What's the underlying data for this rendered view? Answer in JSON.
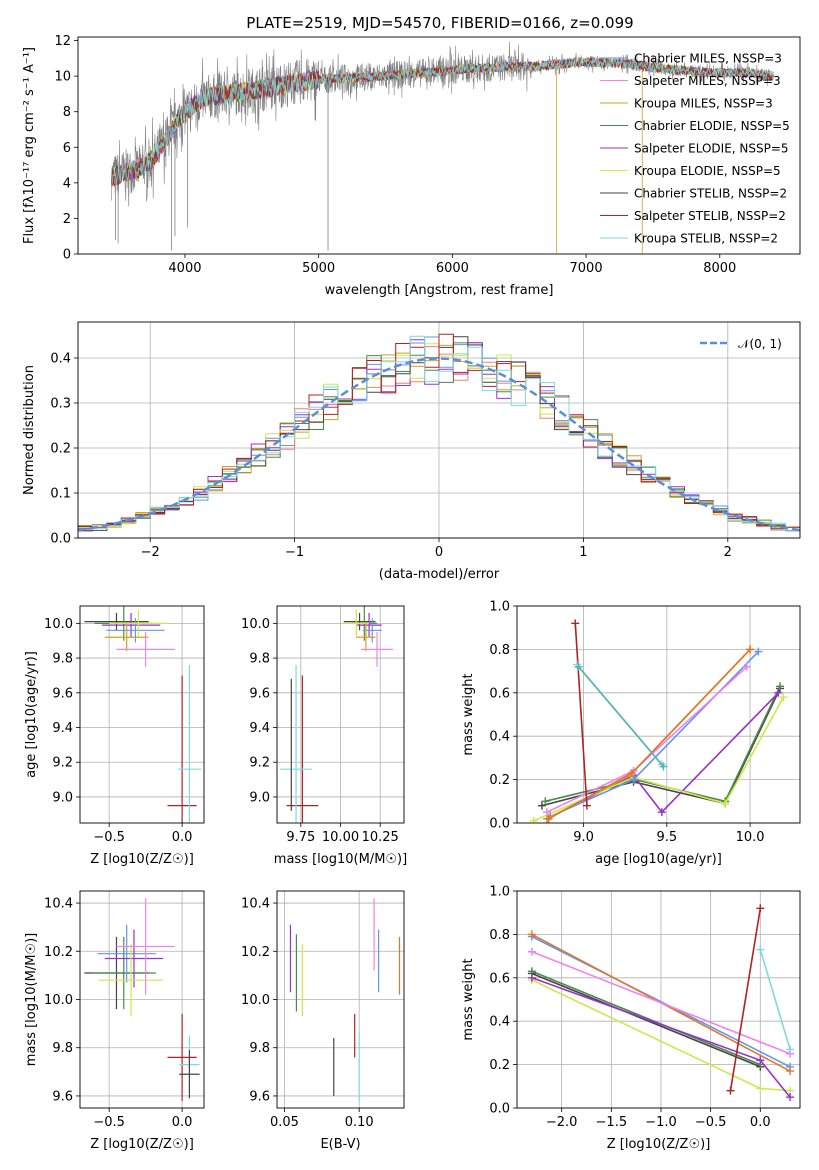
{
  "figure": {
    "title": "PLATE=2519, MJD=54570, FIBERID=0166, z=0.099"
  },
  "chart_data": [
    {
      "id": "spectrum",
      "type": "line",
      "xlabel": "wavelength [Angstrom, rest frame]",
      "ylabel": "Flux [fλ10⁻¹⁷ erg cm⁻² s⁻¹ A⁻¹]",
      "xlim": [
        3200,
        8600
      ],
      "ylim": [
        0,
        12.2
      ],
      "xticks": [
        4000,
        5000,
        6000,
        7000,
        8000
      ],
      "yticks": [
        0,
        2,
        4,
        6,
        8,
        10,
        12
      ],
      "grid": false,
      "legend_position": "top-right",
      "continuum": {
        "x": [
          3450,
          3550,
          3650,
          3750,
          3850,
          3950,
          4050,
          4150,
          4250,
          4400,
          4600,
          4800,
          5000,
          5200,
          5500,
          5800,
          6100,
          6400,
          6700,
          7000,
          7300,
          7600,
          7900,
          8200,
          8400
        ],
        "y": [
          4.3,
          4.6,
          4.8,
          5.3,
          6.3,
          7.6,
          8.3,
          8.8,
          8.9,
          9.1,
          9.3,
          9.6,
          9.8,
          9.9,
          10.0,
          10.2,
          10.4,
          10.5,
          10.6,
          10.8,
          10.7,
          10.4,
          10.2,
          10.2,
          10.0
        ]
      },
      "series": [
        {
          "name": "Chabrier MILES, NSSP=3",
          "color": "#6495ed"
        },
        {
          "name": "Salpeter MILES, NSSP=3",
          "color": "#ee82ee"
        },
        {
          "name": "Kroupa MILES, NSSP=3",
          "color": "#d2a026"
        },
        {
          "name": "Chabrier ELODIE, NSSP=5",
          "color": "#4a8a4a"
        },
        {
          "name": "Salpeter ELODIE, NSSP=5",
          "color": "#9932cc"
        },
        {
          "name": "Kroupa ELODIE, NSSP=5",
          "color": "#d9e84a"
        },
        {
          "name": "Chabrier STELIB, NSSP=2",
          "color": "#444444"
        },
        {
          "name": "Salpeter STELIB, NSSP=2",
          "color": "#b22222"
        },
        {
          "name": "Kroupa STELIB, NSSP=2",
          "color": "#7fd9e0"
        }
      ],
      "data_color": "#808080"
    },
    {
      "id": "residuals",
      "type": "line",
      "xlabel": "(data-model)/error",
      "ylabel": "Normed distribution",
      "xlim": [
        -2.5,
        2.5
      ],
      "ylim": [
        0,
        0.48
      ],
      "xticks": [
        -2,
        -1,
        0,
        1,
        2
      ],
      "yticks": [
        0.0,
        0.1,
        0.2,
        0.3,
        0.4
      ],
      "grid": true,
      "legend_position": "top-right",
      "normal_label": "𝒩(0, 1)",
      "normal_color": "#5a8fd8",
      "series_colors": [
        "#6495ed",
        "#f08080",
        "#d2a026",
        "#4a8a4a",
        "#9932cc",
        "#cce84a",
        "#444444",
        "#b22222",
        "#7fd9e0"
      ]
    },
    {
      "id": "Z-age",
      "type": "scatter",
      "xlabel": "Z [log10(Z/Z☉)]",
      "ylabel": "age  [log10(age/yr)]",
      "xlim": [
        -0.7,
        0.15
      ],
      "ylim": [
        8.85,
        10.1
      ],
      "xticks": [
        -0.5,
        0.0
      ],
      "yticks": [
        9.0,
        9.2,
        9.4,
        9.6,
        9.8,
        10.0
      ],
      "grid": true,
      "points": [
        {
          "x": -0.45,
          "y": 10.01,
          "xerr": 0.22,
          "yerr": 0.05,
          "color": "#444444"
        },
        {
          "x": -0.4,
          "y": 10.0,
          "xerr": 0.2,
          "yerr": 0.1,
          "color": "#4a8a4a"
        },
        {
          "x": -0.35,
          "y": 9.99,
          "xerr": 0.2,
          "yerr": 0.07,
          "color": "#9932cc"
        },
        {
          "x": -0.32,
          "y": 9.96,
          "xerr": 0.2,
          "yerr": 0.07,
          "color": "#6495ed"
        },
        {
          "x": -0.3,
          "y": 10.0,
          "xerr": 0.2,
          "yerr": 0.08,
          "color": "#cce84a"
        },
        {
          "x": -0.38,
          "y": 9.92,
          "xerr": 0.15,
          "yerr": 0.08,
          "color": "#d2a026"
        },
        {
          "x": -0.25,
          "y": 9.85,
          "xerr": 0.2,
          "yerr": 0.1,
          "color": "#ee82ee"
        },
        {
          "x": 0.0,
          "y": 8.95,
          "xerr": 0.1,
          "yerr": 0.75,
          "color": "#b22222"
        },
        {
          "x": 0.05,
          "y": 9.16,
          "xerr": 0.08,
          "yerr": 0.6,
          "color": "#7fd9e0"
        }
      ]
    },
    {
      "id": "mass-age",
      "type": "scatter",
      "xlabel": "mass [log10(M/M☉)]",
      "ylabel": "",
      "xlim": [
        9.6,
        10.4
      ],
      "ylim": [
        8.85,
        10.1
      ],
      "xticks": [
        9.75,
        10.0,
        10.25
      ],
      "tick_labels": [
        "9.75",
        "10.00",
        "10.25"
      ],
      "yticks": [
        9.0,
        9.2,
        9.4,
        9.6,
        9.8,
        10.0
      ],
      "grid": true,
      "points": [
        {
          "x": 10.12,
          "y": 10.01,
          "xerr": 0.1,
          "yerr": 0.05,
          "color": "#444444"
        },
        {
          "x": 10.15,
          "y": 10.0,
          "xerr": 0.08,
          "yerr": 0.1,
          "color": "#4a8a4a"
        },
        {
          "x": 10.18,
          "y": 9.99,
          "xerr": 0.08,
          "yerr": 0.07,
          "color": "#9932cc"
        },
        {
          "x": 10.2,
          "y": 9.96,
          "xerr": 0.06,
          "yerr": 0.07,
          "color": "#6495ed"
        },
        {
          "x": 10.1,
          "y": 10.0,
          "xerr": 0.08,
          "yerr": 0.08,
          "color": "#cce84a"
        },
        {
          "x": 10.16,
          "y": 9.92,
          "xerr": 0.06,
          "yerr": 0.08,
          "color": "#d2a026"
        },
        {
          "x": 10.23,
          "y": 9.85,
          "xerr": 0.1,
          "yerr": 0.1,
          "color": "#ee82ee"
        },
        {
          "x": 9.76,
          "y": 8.95,
          "xerr": 0.1,
          "yerr": 0.75,
          "color": "#b22222"
        },
        {
          "x": 9.72,
          "y": 9.16,
          "xerr": 0.1,
          "yerr": 0.6,
          "color": "#7fd9e0"
        },
        {
          "x": 9.69,
          "y": 9.3,
          "xerr": 0.0,
          "yerr": 0.38,
          "color": "#444444"
        }
      ]
    },
    {
      "id": "age-weight",
      "type": "line",
      "xlabel": "age  [log10(age/yr)]",
      "ylabel": "mass weight",
      "xlim": [
        8.6,
        10.3
      ],
      "ylim": [
        0,
        1.0
      ],
      "xticks": [
        9.0,
        9.5,
        10.0
      ],
      "yticks": [
        0.0,
        0.2,
        0.4,
        0.6,
        0.8,
        1.0
      ],
      "grid": true,
      "series": [
        {
          "color": "#444444",
          "x": [
            8.75,
            9.3,
            9.85,
            10.18
          ],
          "y": [
            0.08,
            0.19,
            0.09,
            0.62
          ]
        },
        {
          "color": "#4a8a4a",
          "x": [
            8.77,
            9.31,
            9.85,
            10.18
          ],
          "y": [
            0.1,
            0.2,
            0.1,
            0.63
          ]
        },
        {
          "color": "#9932cc",
          "x": [
            8.78,
            9.3,
            9.47,
            10.17
          ],
          "y": [
            0.02,
            0.22,
            0.05,
            0.6
          ]
        },
        {
          "color": "#cce84a",
          "x": [
            8.7,
            9.3,
            9.85,
            10.2
          ],
          "y": [
            0.01,
            0.21,
            0.09,
            0.58
          ]
        },
        {
          "color": "#6495ed",
          "x": [
            8.8,
            9.3,
            10.05
          ],
          "y": [
            0.03,
            0.2,
            0.79
          ]
        },
        {
          "color": "#d2a026",
          "x": [
            8.78,
            9.28,
            10.0
          ],
          "y": [
            0.02,
            0.22,
            0.8
          ]
        },
        {
          "color": "#ee82ee",
          "x": [
            8.78,
            9.3,
            9.98
          ],
          "y": [
            0.05,
            0.24,
            0.72
          ]
        },
        {
          "color": "#e0762a",
          "x": [
            8.79,
            9.29,
            10.0
          ],
          "y": [
            0.02,
            0.23,
            0.8
          ]
        },
        {
          "color": "#b22222",
          "x": [
            8.95,
            9.02
          ],
          "y": [
            0.92,
            0.08
          ]
        },
        {
          "color": "#7fd9e0",
          "x": [
            8.96,
            9.47
          ],
          "y": [
            0.73,
            0.27
          ]
        },
        {
          "color": "#5ab0b8",
          "x": [
            8.97,
            9.48
          ],
          "y": [
            0.72,
            0.26
          ]
        }
      ]
    },
    {
      "id": "Z-mass",
      "type": "scatter",
      "xlabel": "Z [log10(Z/Z☉)]",
      "ylabel": "mass [log10(M/M☉)]",
      "xlim": [
        -0.7,
        0.15
      ],
      "ylim": [
        9.55,
        10.45
      ],
      "xticks": [
        -0.5,
        0.0
      ],
      "yticks": [
        9.6,
        9.8,
        10.0,
        10.2,
        10.4
      ],
      "grid": true,
      "points": [
        {
          "x": -0.45,
          "y": 10.11,
          "xerr": 0.22,
          "yerr": 0.15,
          "color": "#444444"
        },
        {
          "x": -0.4,
          "y": 10.11,
          "xerr": 0.22,
          "yerr": 0.15,
          "color": "#4a8a4a"
        },
        {
          "x": -0.38,
          "y": 10.19,
          "xerr": 0.2,
          "yerr": 0.12,
          "color": "#6495ed"
        },
        {
          "x": -0.33,
          "y": 10.17,
          "xerr": 0.2,
          "yerr": 0.12,
          "color": "#9932cc"
        },
        {
          "x": -0.35,
          "y": 10.08,
          "xerr": 0.22,
          "yerr": 0.15,
          "color": "#cce84a"
        },
        {
          "x": -0.25,
          "y": 10.22,
          "xerr": 0.2,
          "yerr": 0.2,
          "color": "#ee82ee"
        },
        {
          "x": 0.0,
          "y": 9.76,
          "xerr": 0.1,
          "yerr": 0.18,
          "color": "#b22222"
        },
        {
          "x": 0.05,
          "y": 9.73,
          "xerr": 0.07,
          "yerr": 0.12,
          "color": "#7fd9e0"
        },
        {
          "x": 0.05,
          "y": 9.69,
          "xerr": 0.07,
          "yerr": 0.1,
          "color": "#444444"
        }
      ]
    },
    {
      "id": "ebv-mass",
      "type": "scatter",
      "xlabel": "E(B-V)",
      "ylabel": "",
      "xlim": [
        0.045,
        0.13
      ],
      "ylim": [
        9.55,
        10.45
      ],
      "xticks": [
        0.05,
        0.1
      ],
      "tick_labels": [
        "0.05",
        "0.10"
      ],
      "yticks": [
        9.6,
        9.8,
        10.0,
        10.2,
        10.4
      ],
      "grid": true,
      "points": [
        {
          "x": 0.054,
          "y": 10.17,
          "yerr": 0.14,
          "color": "#9932cc"
        },
        {
          "x": 0.058,
          "y": 10.11,
          "yerr": 0.16,
          "color": "#4a8a4a"
        },
        {
          "x": 0.062,
          "y": 10.08,
          "yerr": 0.15,
          "color": "#cce84a"
        },
        {
          "x": 0.083,
          "y": 9.72,
          "yerr": 0.12,
          "color": "#444444"
        },
        {
          "x": 0.097,
          "y": 9.85,
          "yerr": 0.09,
          "color": "#b22222"
        },
        {
          "x": 0.1,
          "y": 9.72,
          "yerr": 0.14,
          "color": "#7fd9e0"
        },
        {
          "x": 0.11,
          "y": 10.27,
          "yerr": 0.15,
          "color": "#ee82ee"
        },
        {
          "x": 0.113,
          "y": 10.16,
          "yerr": 0.13,
          "color": "#6495ed"
        },
        {
          "x": 0.127,
          "y": 10.14,
          "yerr": 0.12,
          "color": "#e0762a"
        }
      ]
    },
    {
      "id": "Z-weight",
      "type": "line",
      "xlabel": "Z [log10(Z/Z☉)]",
      "ylabel": "mass weight",
      "xlim": [
        -2.45,
        0.4
      ],
      "ylim": [
        0,
        1.0
      ],
      "xticks": [
        -2.0,
        -1.5,
        -1.0,
        -0.5,
        0.0
      ],
      "yticks": [
        0.0,
        0.2,
        0.4,
        0.6,
        0.8,
        1.0
      ],
      "grid": true,
      "series": [
        {
          "color": "#6495ed",
          "x": [
            -2.3,
            0.3
          ],
          "y": [
            0.79,
            0.19
          ]
        },
        {
          "color": "#e0762a",
          "x": [
            -2.3,
            0.3
          ],
          "y": [
            0.8,
            0.17
          ]
        },
        {
          "color": "#ee82ee",
          "x": [
            -2.3,
            0.3
          ],
          "y": [
            0.72,
            0.25
          ]
        },
        {
          "color": "#444444",
          "x": [
            -2.3,
            0.0
          ],
          "y": [
            0.62,
            0.19
          ]
        },
        {
          "color": "#4a8a4a",
          "x": [
            -2.3,
            0.0
          ],
          "y": [
            0.63,
            0.2
          ]
        },
        {
          "color": "#cce84a",
          "x": [
            -2.3,
            0.0,
            0.3
          ],
          "y": [
            0.59,
            0.09,
            0.08
          ]
        },
        {
          "color": "#9932cc",
          "x": [
            -2.3,
            0.0,
            0.3
          ],
          "y": [
            0.6,
            0.22,
            0.05
          ]
        },
        {
          "color": "#b22222",
          "x": [
            -0.3,
            0.0
          ],
          "y": [
            0.08,
            0.92
          ]
        },
        {
          "color": "#7fd9e0",
          "x": [
            0.0,
            0.3
          ],
          "y": [
            0.73,
            0.27
          ]
        }
      ]
    }
  ]
}
